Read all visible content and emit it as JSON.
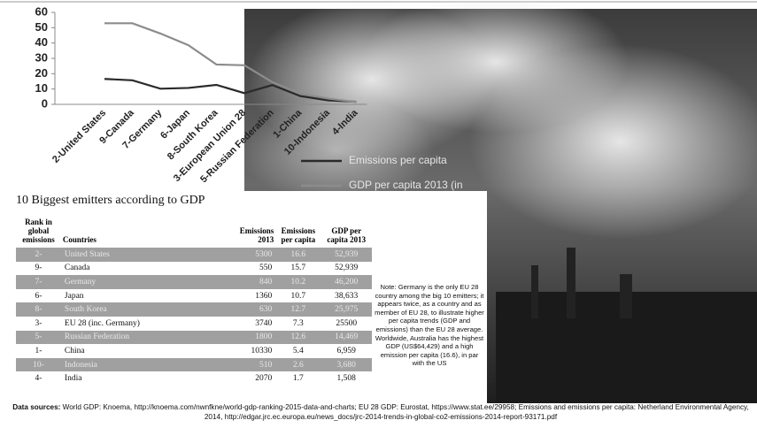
{
  "chart_data": {
    "type": "line",
    "categories": [
      "2-United States",
      "9-Canada",
      "7-Germany",
      "6-Japan",
      "8-South Korea",
      "3-European Union 28",
      "5-Russian Federation",
      "1-China",
      "10-Indonesia",
      "4-India"
    ],
    "series": [
      {
        "name": "Emissions per capita",
        "color": "#2a2a2a",
        "values": [
          16.6,
          15.7,
          10.2,
          10.7,
          12.7,
          7.3,
          12.6,
          5.4,
          2.6,
          1.7
        ]
      },
      {
        "name": "GDP per capita 2013 (in",
        "color": "#8c8c8c",
        "values": [
          52.9,
          52.9,
          46.2,
          38.6,
          26.0,
          25.5,
          14.5,
          7.0,
          3.7,
          1.5
        ]
      }
    ],
    "ylim": [
      0,
      60
    ],
    "yticks": [
      0,
      10,
      20,
      30,
      40,
      50,
      60
    ],
    "grid": false
  },
  "table": {
    "title": "10 Biggest emitters according to GDP",
    "headers": [
      "Rank in global emissions",
      "Countries",
      "Emissions 2013",
      "Emissions per capita",
      "GDP per capita 2013"
    ],
    "rows": [
      [
        "2-",
        "United States",
        "5300",
        "16.6",
        "52,939"
      ],
      [
        "9-",
        "Canada",
        "550",
        "15.7",
        "52,939"
      ],
      [
        "7-",
        "Germany",
        "840",
        "10.2",
        "46,200"
      ],
      [
        "6-",
        "Japan",
        "1360",
        "10.7",
        "38,633"
      ],
      [
        "8-",
        "South Korea",
        "630",
        "12.7",
        "25,975"
      ],
      [
        "3-",
        "EU 28 (inc. Germany)",
        "3740",
        "7.3",
        "25500"
      ],
      [
        "5-",
        "Russian Federation",
        "1800",
        "12.6",
        "14,469"
      ],
      [
        "1-",
        "China",
        "10330",
        "5.4",
        "6,959"
      ],
      [
        "10-",
        "Indonesia",
        "510",
        "2.6",
        "3,680"
      ],
      [
        "4-",
        "India",
        "2070",
        "1.7",
        "1,508"
      ]
    ]
  },
  "note": "Note: Germany is the only EU 28 country among the big 10 emitters; it appears twice, as a country and as member of EU 28, to illustrate higher per capita trends (GDP and emissions) than the EU 28 average. Worldwide, Australia has the highest GDP (US$64,429) and a high emission per capita (16.6), in par with the US",
  "sources": {
    "label": "Data sources:",
    "text": " World GDP: Knoema, http://knoema.com/nwnfkne/world-gdp-ranking-2015-data-and-charts; EU 28 GDP: Eurostat, https://www.stat.ee/29958;  Emissions and emissions per capita: Netherland Environmental Agency, 2014, http://edgar.jrc.ec.europa.eu/news_docs/jrc-2014-trends-in-global-co2-emissions-2014-report-93171.pdf"
  }
}
